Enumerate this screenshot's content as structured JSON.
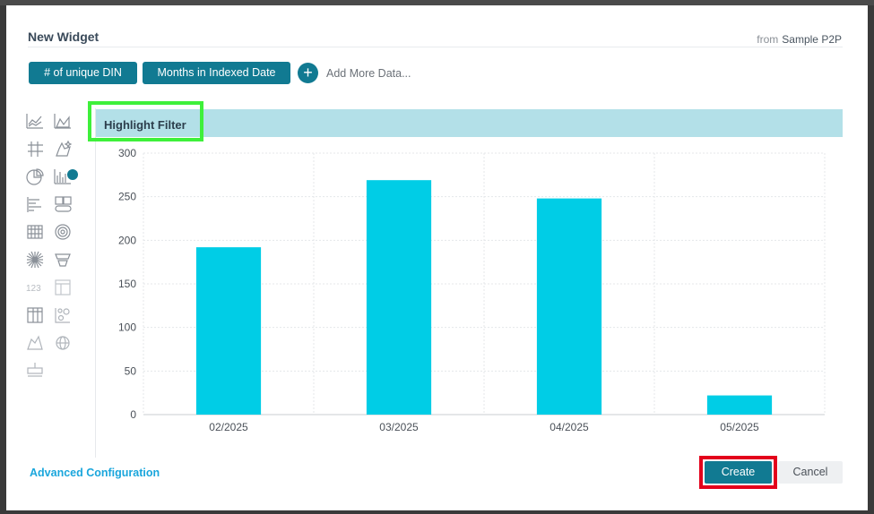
{
  "dialog": {
    "title": "New Widget",
    "from_prefix": "from",
    "source": "Sample P2P"
  },
  "data_pills": [
    "# of unique DIN",
    "Months in Indexed Date"
  ],
  "add_more": {
    "icon": "+",
    "label": "Add More Data..."
  },
  "chart_types": [
    "line-chart-icon",
    "area-chart-icon",
    "pivot-grid-icon",
    "custom-widget-icon",
    "pie-chart-icon",
    "column-chart-icon",
    "bar-chart-icon",
    "boxes-icon",
    "heatmap-grid-icon",
    "sunburst-icon",
    "scatter-burst-icon",
    "funnel-icon",
    "indicator-icon",
    "table-icon",
    "table-grid-icon",
    "scatter-plot-icon",
    "area-map-icon",
    "world-map-icon",
    "polar-icon"
  ],
  "chart_header": {
    "title": "Highlight Filter"
  },
  "chart_data": {
    "type": "bar",
    "categories": [
      "02/2025",
      "03/2025",
      "04/2025",
      "05/2025"
    ],
    "values": [
      192,
      269,
      248,
      22
    ],
    "ylim": [
      0,
      300
    ],
    "yticks": [
      0,
      50,
      100,
      150,
      200,
      250,
      300
    ],
    "grid": true,
    "bar_color": "#00cde6"
  },
  "footer": {
    "advanced_config": "Advanced Configuration",
    "create": "Create",
    "cancel": "Cancel"
  },
  "colors": {
    "accent": "#117a92",
    "link": "#1aa6dc",
    "highlight_green": "#3ef03a",
    "highlight_red": "#e3001b"
  }
}
